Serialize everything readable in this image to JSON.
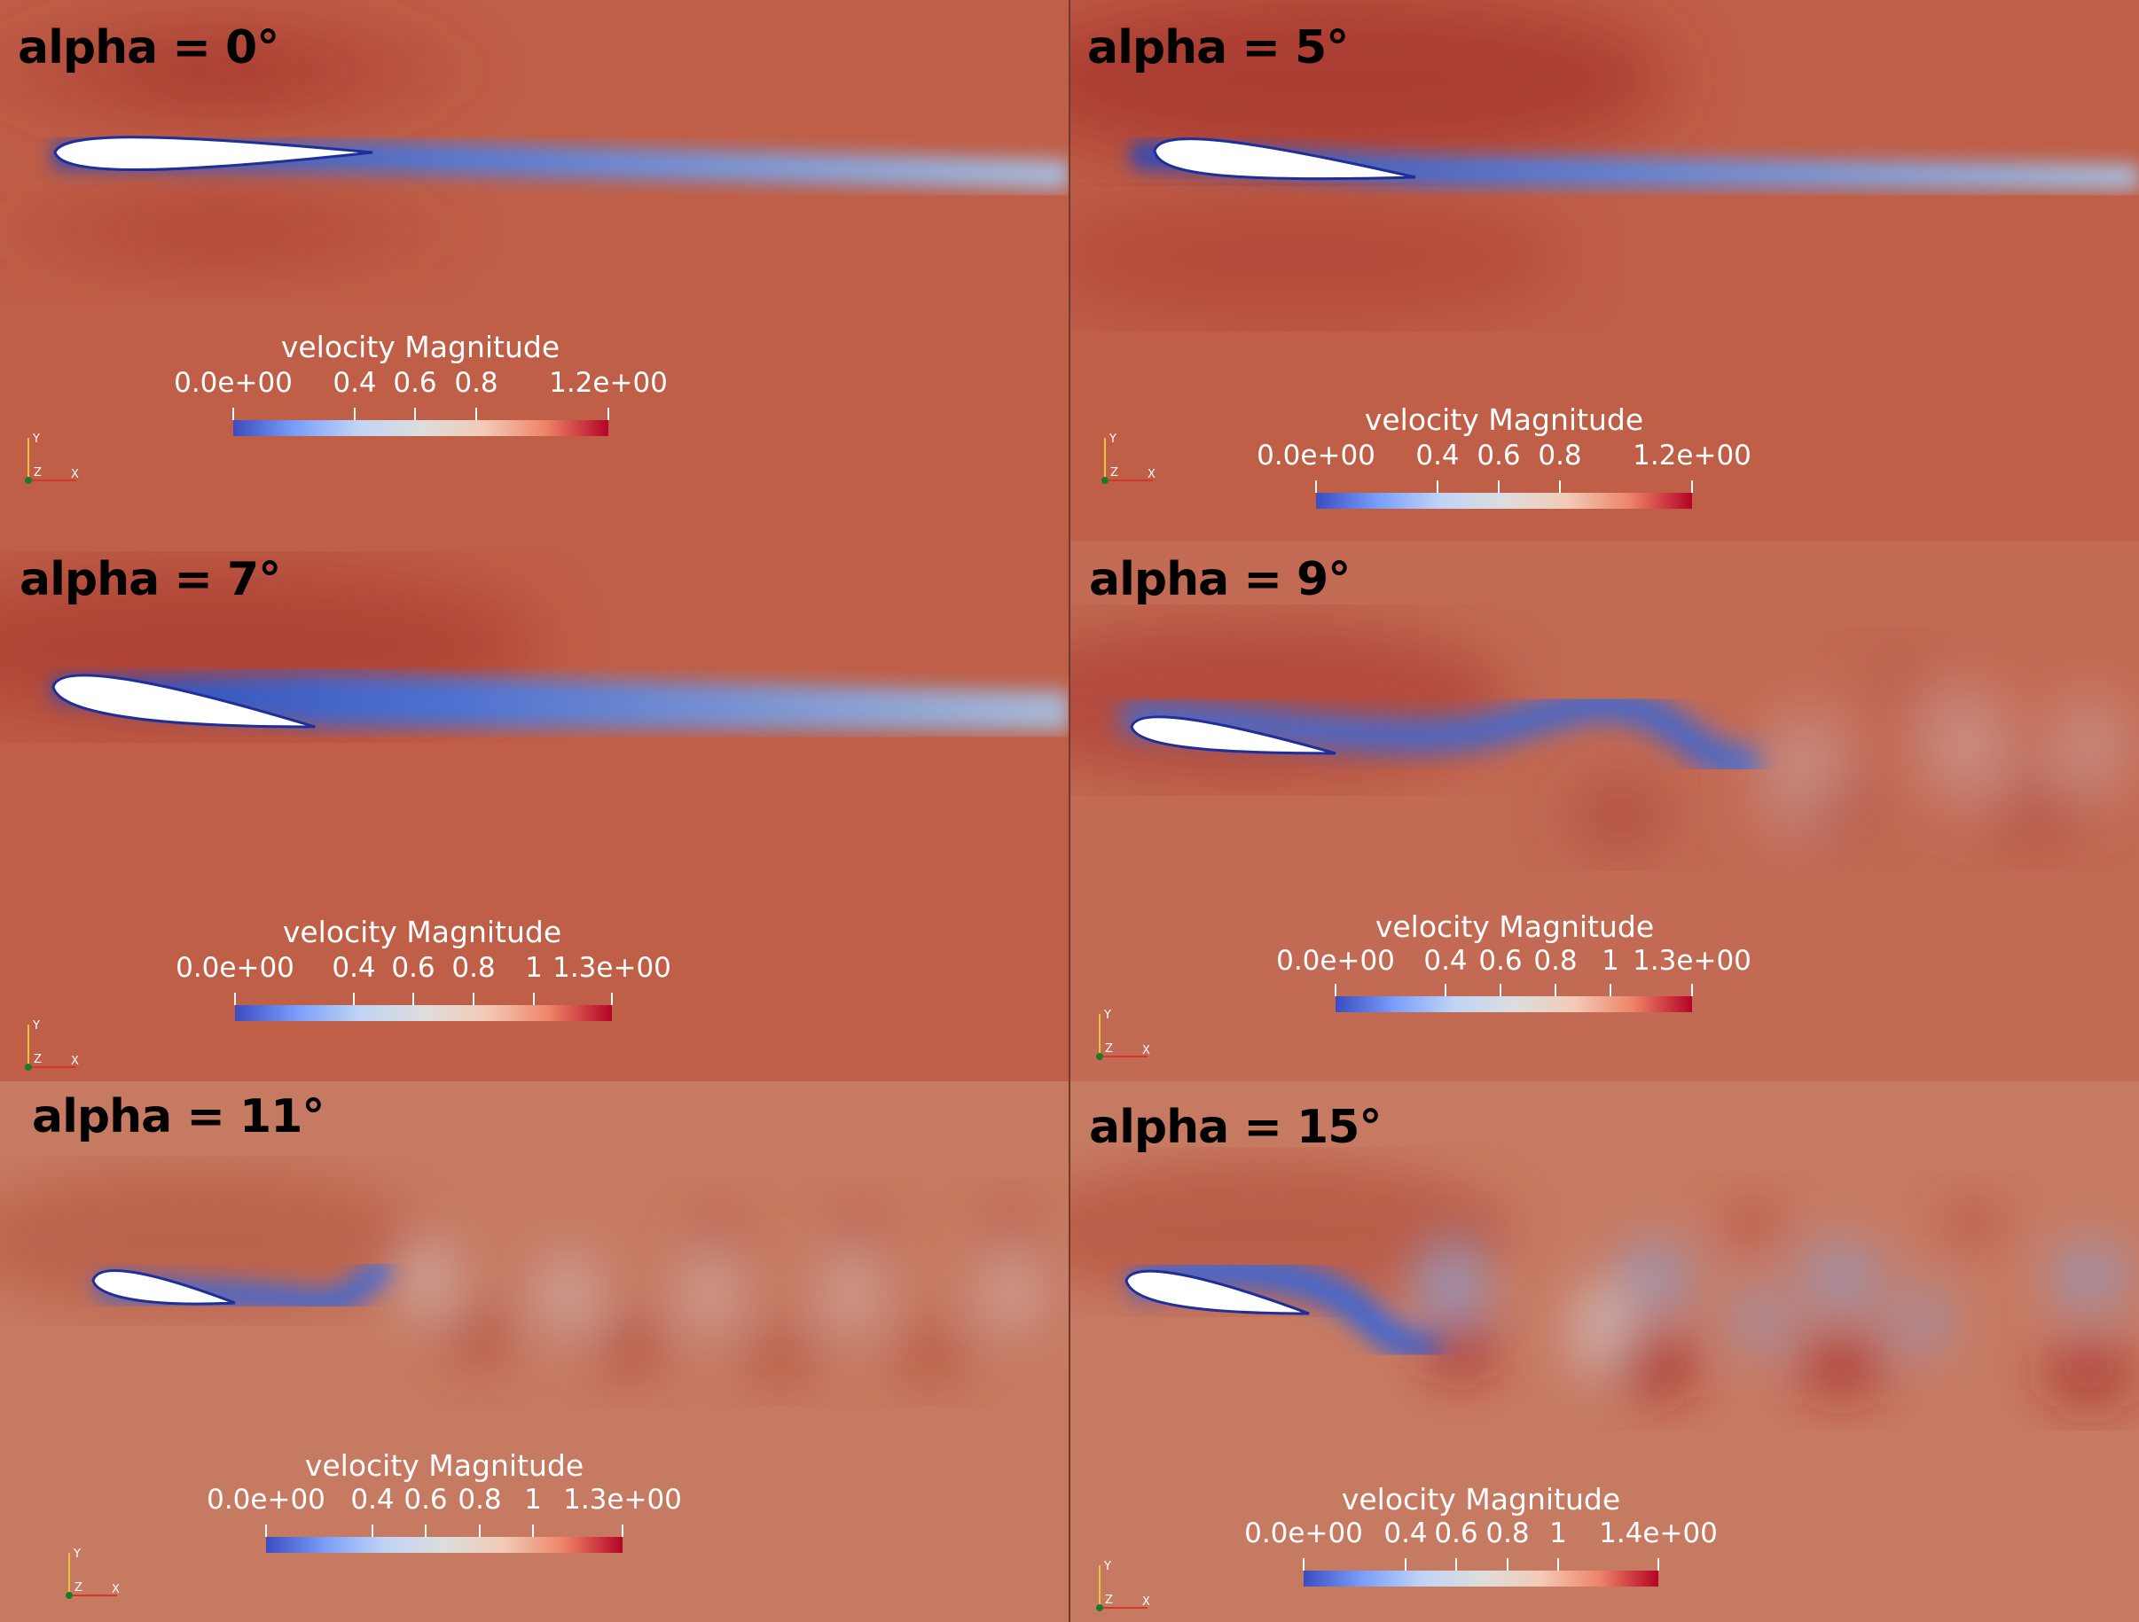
{
  "panels": [
    {
      "id": "p0",
      "title": "alpha = 0°",
      "colorbar": {
        "title": "velocity Magnitude",
        "ticks": [
          "0.0e+00",
          "0.4",
          "0.6",
          "0.8",
          "1.2e+00"
        ]
      },
      "axes": {
        "y": "Y",
        "z": "Z",
        "x": "X"
      }
    },
    {
      "id": "p5",
      "title": "alpha = 5°",
      "colorbar": {
        "title": "velocity Magnitude",
        "ticks": [
          "0.0e+00",
          "0.4",
          "0.6",
          "0.8",
          "1.2e+00"
        ]
      },
      "axes": {
        "y": "Y",
        "z": "Z",
        "x": "X"
      }
    },
    {
      "id": "p7",
      "title": "alpha = 7°",
      "colorbar": {
        "title": "velocity Magnitude",
        "ticks": [
          "0.0e+00",
          "0.4",
          "0.6",
          "0.8",
          "1",
          "1.3e+00"
        ]
      },
      "axes": {
        "y": "Y",
        "z": "Z",
        "x": "X"
      }
    },
    {
      "id": "p9",
      "title": "alpha = 9°",
      "colorbar": {
        "title": "velocity Magnitude",
        "ticks": [
          "0.0e+00",
          "0.4",
          "0.6",
          "0.8",
          "1",
          "1.3e+00"
        ]
      },
      "axes": {
        "y": "Y",
        "z": "Z",
        "x": "X"
      }
    },
    {
      "id": "p11",
      "title": "alpha = 11°",
      "colorbar": {
        "title": "velocity Magnitude",
        "ticks": [
          "0.0e+00",
          "0.4",
          "0.6",
          "0.8",
          "1",
          "1.3e+00"
        ]
      },
      "axes": {
        "y": "Y",
        "z": "Z",
        "x": "X"
      }
    },
    {
      "id": "p15",
      "title": "alpha = 15°",
      "colorbar": {
        "title": "velocity Magnitude",
        "ticks": [
          "0.0e+00",
          "0.4",
          "0.6",
          "0.8",
          "1",
          "1.4e+00"
        ]
      },
      "axes": {
        "y": "Y",
        "z": "Z",
        "x": "X"
      }
    }
  ],
  "colors": {
    "freestream": "#c0604a",
    "high": "#b0392b",
    "low": "#3b4cc0",
    "mid": "#c9d3e0",
    "airfoil": "#ffffff"
  }
}
